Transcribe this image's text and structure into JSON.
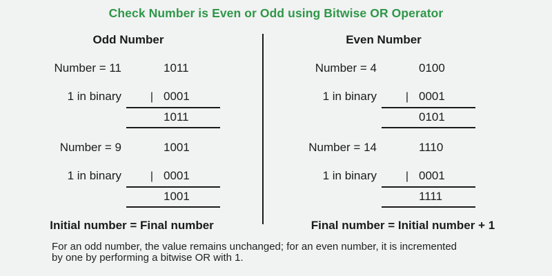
{
  "title": "Check Number is Even or Odd using Bitwise OR Operator",
  "columns": [
    {
      "header": "Odd Number",
      "examples": [
        {
          "label": "Number = 11",
          "operand_binary": "1011",
          "operator_label": "1 in binary",
          "operator_symbol": "|",
          "operator_binary": "0001",
          "result_binary": "1011"
        },
        {
          "label": "Number = 9",
          "operand_binary": "1001",
          "operator_label": "1 in binary",
          "operator_symbol": "|",
          "operator_binary": "0001",
          "result_binary": "1001"
        }
      ],
      "conclusion": "Initial number = Final number"
    },
    {
      "header": "Even Number",
      "examples": [
        {
          "label": "Number = 4",
          "operand_binary": "0100",
          "operator_label": "1 in binary",
          "operator_symbol": "|",
          "operator_binary": "0001",
          "result_binary": "0101"
        },
        {
          "label": "Number = 14",
          "operand_binary": "1110",
          "operator_label": "1 in binary",
          "operator_symbol": "|",
          "operator_binary": "0001",
          "result_binary": "1111"
        }
      ],
      "conclusion": "Final number = Initial number + 1"
    }
  ],
  "caption": {
    "line1": "For an odd number, the value remains unchanged; for an even number, it is incremented",
    "line2": "by one by performing a bitwise OR with 1."
  },
  "colors": {
    "title_green": "#2e9748",
    "background": "#f1f2f2",
    "text": "#1b1b1b",
    "line": "#1a1a1a"
  }
}
